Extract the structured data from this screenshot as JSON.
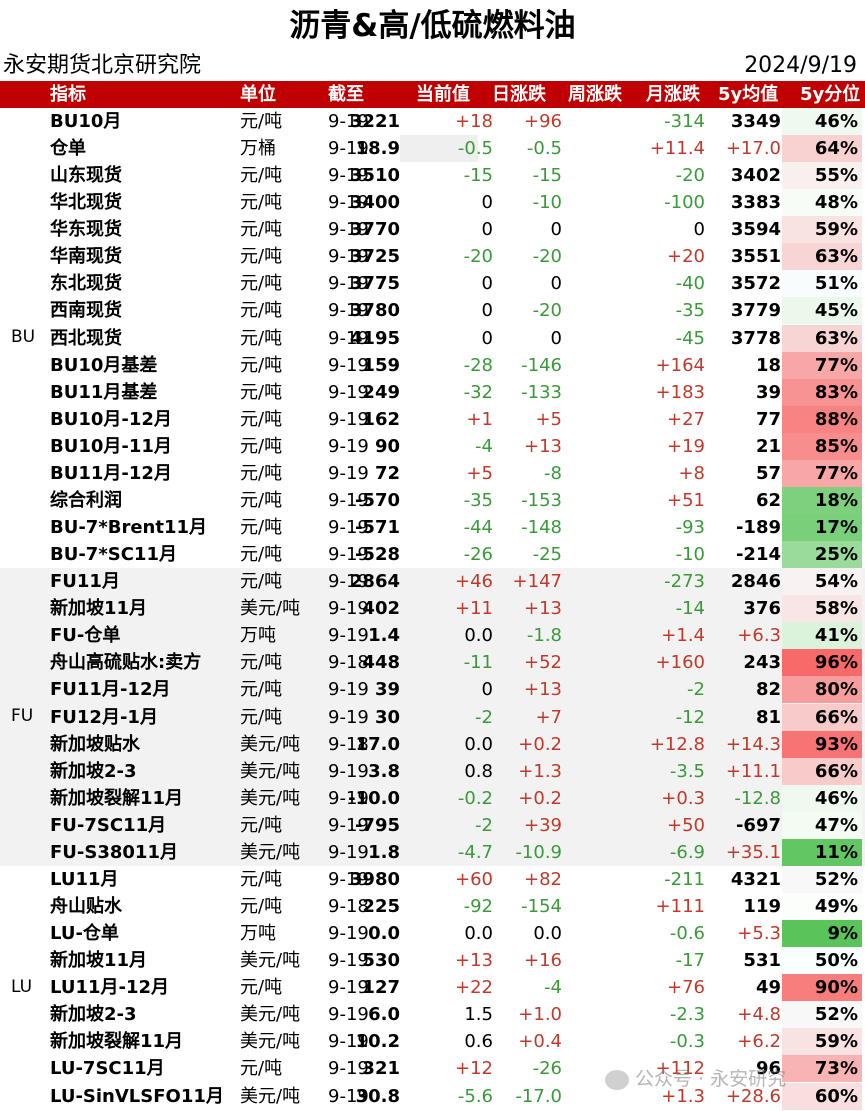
{
  "title": "沥青&高/低硫燃料油",
  "org": "永安期货北京研究院",
  "date": "2024/9/19",
  "headers": [
    "指标",
    "单位",
    "截至",
    "当前值",
    "日涨跌",
    "周涨跌",
    "月涨跌",
    "5y均值",
    "5y分位"
  ],
  "watermark": "公众号 · 永安研究",
  "colors": {
    "header_red": "#c00000",
    "up_red": "#c0392b",
    "down_green": "#3a9a3a",
    "pct_high_red": "#f06a6a",
    "pct_low_green": "#5cb85c"
  },
  "groups": [
    {
      "label": "BU",
      "rows": [
        {
          "name": "BU10月",
          "unit": "元/吨",
          "date": "9-19",
          "cur": "3221",
          "d": "+18",
          "w": "+96",
          "m": "-314",
          "avg": "3349",
          "pct": "46%",
          "pv": 46
        },
        {
          "name": "仓单",
          "unit": "万桶",
          "date": "9-19",
          "cur": "18.9",
          "d": "-0.5",
          "w": "-0.5",
          "m": "+11.4",
          "avg": "+17.0",
          "pct": "64%",
          "pv": 64
        },
        {
          "name": "山东现货",
          "unit": "元/吨",
          "date": "9-19",
          "cur": "3510",
          "d": "-15",
          "w": "-15",
          "m": "-20",
          "avg": "3402",
          "pct": "55%",
          "pv": 55
        },
        {
          "name": "华北现货",
          "unit": "元/吨",
          "date": "9-19",
          "cur": "3400",
          "d": "0",
          "w": "-10",
          "m": "-100",
          "avg": "3383",
          "pct": "48%",
          "pv": 48
        },
        {
          "name": "华东现货",
          "unit": "元/吨",
          "date": "9-19",
          "cur": "3770",
          "d": "0",
          "w": "0",
          "m": "0",
          "avg": "3594",
          "pct": "59%",
          "pv": 59
        },
        {
          "name": "华南现货",
          "unit": "元/吨",
          "date": "9-19",
          "cur": "3725",
          "d": "-20",
          "w": "-20",
          "m": "+20",
          "avg": "3551",
          "pct": "63%",
          "pv": 63
        },
        {
          "name": "东北现货",
          "unit": "元/吨",
          "date": "9-19",
          "cur": "3775",
          "d": "0",
          "w": "0",
          "m": "-40",
          "avg": "3572",
          "pct": "51%",
          "pv": 51
        },
        {
          "name": "西南现货",
          "unit": "元/吨",
          "date": "9-19",
          "cur": "3780",
          "d": "0",
          "w": "-20",
          "m": "-35",
          "avg": "3779",
          "pct": "45%",
          "pv": 45
        },
        {
          "name": "西北现货",
          "unit": "元/吨",
          "date": "9-19",
          "cur": "4195",
          "d": "0",
          "w": "0",
          "m": "-45",
          "avg": "3778",
          "pct": "63%",
          "pv": 63
        },
        {
          "name": "BU10月基差",
          "unit": "元/吨",
          "date": "9-19",
          "cur": "159",
          "d": "-28",
          "w": "-146",
          "m": "+164",
          "avg": "18",
          "pct": "77%",
          "pv": 77
        },
        {
          "name": "BU11月基差",
          "unit": "元/吨",
          "date": "9-19",
          "cur": "249",
          "d": "-32",
          "w": "-133",
          "m": "+183",
          "avg": "39",
          "pct": "83%",
          "pv": 83
        },
        {
          "name": "BU10月-12月",
          "unit": "元/吨",
          "date": "9-19",
          "cur": "162",
          "d": "+1",
          "w": "+5",
          "m": "+27",
          "avg": "77",
          "pct": "88%",
          "pv": 88
        },
        {
          "name": "BU10月-11月",
          "unit": "元/吨",
          "date": "9-19",
          "cur": "90",
          "d": "-4",
          "w": "+13",
          "m": "+19",
          "avg": "21",
          "pct": "85%",
          "pv": 85
        },
        {
          "name": "BU11月-12月",
          "unit": "元/吨",
          "date": "9-19",
          "cur": "72",
          "d": "+5",
          "w": "-8",
          "m": "+8",
          "avg": "57",
          "pct": "77%",
          "pv": 77
        },
        {
          "name": "综合利润",
          "unit": "元/吨",
          "date": "9-19",
          "cur": "-570",
          "d": "-35",
          "w": "-153",
          "m": "+51",
          "avg": "62",
          "pct": "18%",
          "pv": 18
        },
        {
          "name": "BU-7*Brent11月",
          "unit": "元/吨",
          "date": "9-19",
          "cur": "-571",
          "d": "-44",
          "w": "-148",
          "m": "-93",
          "avg": "-189",
          "pct": "17%",
          "pv": 17
        },
        {
          "name": "BU-7*SC11月",
          "unit": "元/吨",
          "date": "9-19",
          "cur": "-528",
          "d": "-26",
          "w": "-25",
          "m": "-10",
          "avg": "-214",
          "pct": "25%",
          "pv": 25
        }
      ]
    },
    {
      "label": "FU",
      "rows": [
        {
          "name": "FU11月",
          "unit": "元/吨",
          "date": "9-19",
          "cur": "2864",
          "d": "+46",
          "w": "+147",
          "m": "-273",
          "avg": "2846",
          "pct": "54%",
          "pv": 54
        },
        {
          "name": "新加坡11月",
          "unit": "美元/吨",
          "date": "9-19",
          "cur": "402",
          "d": "+11",
          "w": "+13",
          "m": "-14",
          "avg": "376",
          "pct": "58%",
          "pv": 58
        },
        {
          "name": "FU-仓单",
          "unit": "万吨",
          "date": "9-19",
          "cur": "1.4",
          "d": "0.0",
          "w": "-1.8",
          "m": "+1.4",
          "avg": "+6.3",
          "pct": "41%",
          "pv": 41
        },
        {
          "name": "舟山高硫贴水:卖方",
          "unit": "元/吨",
          "date": "9-18",
          "cur": "448",
          "d": "-11",
          "w": "+52",
          "m": "+160",
          "avg": "243",
          "pct": "96%",
          "pv": 96
        },
        {
          "name": "FU11月-12月",
          "unit": "元/吨",
          "date": "9-19",
          "cur": "39",
          "d": "0",
          "w": "+13",
          "m": "-2",
          "avg": "82",
          "pct": "80%",
          "pv": 80
        },
        {
          "name": "FU12月-1月",
          "unit": "元/吨",
          "date": "9-19",
          "cur": "30",
          "d": "-2",
          "w": "+7",
          "m": "-12",
          "avg": "81",
          "pct": "66%",
          "pv": 66
        },
        {
          "name": "新加坡贴水",
          "unit": "美元/吨",
          "date": "9-18",
          "cur": "17.0",
          "d": "0.0",
          "w": "+0.2",
          "m": "+12.8",
          "avg": "+14.3",
          "pct": "93%",
          "pv": 93
        },
        {
          "name": "新加坡2-3",
          "unit": "美元/吨",
          "date": "9-19",
          "cur": "3.8",
          "d": "0.8",
          "w": "+1.3",
          "m": "-3.5",
          "avg": "+11.1",
          "pct": "66%",
          "pv": 66
        },
        {
          "name": "新加坡裂解11月",
          "unit": "美元/吨",
          "date": "9-19",
          "cur": "-10.0",
          "d": "-0.2",
          "w": "+0.2",
          "m": "+0.3",
          "avg": "-12.8",
          "pct": "46%",
          "pv": 46
        },
        {
          "name": "FU-7SC11月",
          "unit": "元/吨",
          "date": "9-19",
          "cur": "-795",
          "d": "-2",
          "w": "+39",
          "m": "+50",
          "avg": "-697",
          "pct": "47%",
          "pv": 47
        },
        {
          "name": "FU-S38011月",
          "unit": "美元/吨",
          "date": "9-19",
          "cur": "1.8",
          "d": "-4.7",
          "w": "-10.9",
          "m": "-6.9",
          "avg": "+35.1",
          "pct": "11%",
          "pv": 11
        }
      ]
    },
    {
      "label": "LU",
      "rows": [
        {
          "name": "LU11月",
          "unit": "元/吨",
          "date": "9-19",
          "cur": "3980",
          "d": "+60",
          "w": "+82",
          "m": "-211",
          "avg": "4321",
          "pct": "52%",
          "pv": 52
        },
        {
          "name": "舟山贴水",
          "unit": "元/吨",
          "date": "9-18",
          "cur": "225",
          "d": "-92",
          "w": "-154",
          "m": "+111",
          "avg": "119",
          "pct": "49%",
          "pv": 49
        },
        {
          "name": "LU-仓单",
          "unit": "万吨",
          "date": "9-19",
          "cur": "0.0",
          "d": "0.0",
          "w": "0.0",
          "m": "-0.6",
          "avg": "+5.3",
          "pct": "9%",
          "pv": 9
        },
        {
          "name": "新加坡11月",
          "unit": "美元/吨",
          "date": "9-19",
          "cur": "530",
          "d": "+13",
          "w": "+16",
          "m": "-17",
          "avg": "531",
          "pct": "50%",
          "pv": 50
        },
        {
          "name": "LU11月-12月",
          "unit": "元/吨",
          "date": "9-19",
          "cur": "127",
          "d": "+22",
          "w": "-4",
          "m": "+76",
          "avg": "49",
          "pct": "90%",
          "pv": 90
        },
        {
          "name": "新加坡2-3",
          "unit": "美元/吨",
          "date": "9-19",
          "cur": "6.0",
          "d": "1.5",
          "w": "+1.0",
          "m": "-2.3",
          "avg": "+4.8",
          "pct": "52%",
          "pv": 52
        },
        {
          "name": "新加坡裂解11月",
          "unit": "美元/吨",
          "date": "9-19",
          "cur": "10.2",
          "d": "0.6",
          "w": "+0.4",
          "m": "-0.3",
          "avg": "+6.2",
          "pct": "59%",
          "pv": 59
        },
        {
          "name": "LU-7SC11月",
          "unit": "元/吨",
          "date": "9-19",
          "cur": "321",
          "d": "+12",
          "w": "-26",
          "m": "+112",
          "avg": "96",
          "pct": "73%",
          "pv": 73
        },
        {
          "name": "LU-SinVLSFO11月",
          "unit": "美元/吨",
          "date": "9-19",
          "cur": "30.8",
          "d": "-5.6",
          "w": "-17.0",
          "m": "+1.3",
          "avg": "+28.6",
          "pct": "60%",
          "pv": 60
        }
      ]
    }
  ]
}
